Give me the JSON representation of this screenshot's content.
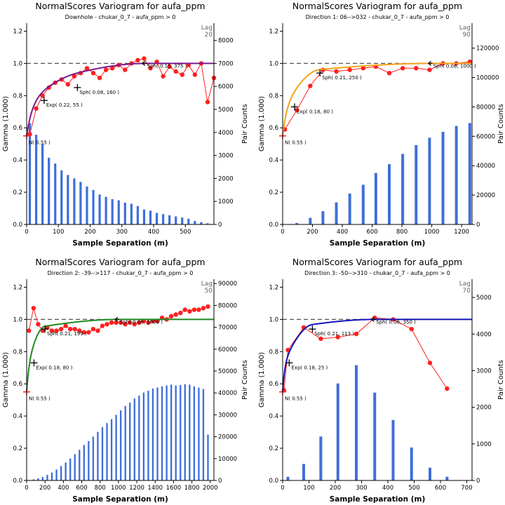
{
  "colors": {
    "bars": "#3f6fd8",
    "experimental": "#ff1f1f",
    "sill_line": "#555555",
    "nugget_marker": "#ff2020",
    "axis": "#000000"
  },
  "chart_data": [
    {
      "type": "line",
      "title": "NormalScores  Variogram for aufa_ppm",
      "subtitle": "Downhole - chukar_0_7 - aufa_ppm > 0",
      "xlabel": "Sample Separation (m)",
      "ylabel": "Gamma (1.000)",
      "y2label": "Pair Counts",
      "lag_label": "Lag",
      "lag_value": "20",
      "xlim": [
        0,
        590
      ],
      "ylim": [
        0,
        1.25
      ],
      "y2lim": [
        0,
        8750
      ],
      "xticks": [
        0,
        100,
        200,
        300,
        400,
        500
      ],
      "yticks": [
        0.0,
        0.2,
        0.4,
        0.6,
        0.8,
        1.0,
        1.2
      ],
      "y2ticks": [
        0,
        1000,
        2000,
        3000,
        4000,
        5000,
        6000,
        7000,
        8000
      ],
      "sill": 1.0,
      "nugget": 0.55,
      "model_color": "#7b1a8c",
      "model": [
        {
          "type": "exp",
          "c": 0.22,
          "a": 55
        },
        {
          "type": "sph",
          "c": 0.08,
          "a": 160
        },
        {
          "type": "sph",
          "c": 0.15,
          "a": 375
        }
      ],
      "labels": [
        {
          "text": "N( 0.55 )",
          "x": 0,
          "y": 0.55,
          "marker": "nugget"
        },
        {
          "text": "Exp( 0.22, 55 )",
          "x": 55,
          "y": 0.77,
          "marker": "cross"
        },
        {
          "text": "Sph( 0.08, 160 )",
          "x": 160,
          "y": 0.85,
          "marker": "cross"
        },
        {
          "text": "Sph( 0.15, 375 )",
          "x": 375,
          "y": 1.0,
          "marker": "left"
        }
      ],
      "experimental": {
        "x": [
          10,
          30,
          50,
          70,
          90,
          110,
          130,
          150,
          170,
          190,
          210,
          230,
          250,
          270,
          290,
          310,
          330,
          350,
          370,
          390,
          410,
          430,
          450,
          470,
          490,
          510,
          530,
          550,
          570,
          590
        ],
        "y": [
          0.56,
          0.72,
          0.8,
          0.85,
          0.88,
          0.9,
          0.87,
          0.92,
          0.94,
          0.97,
          0.94,
          0.91,
          0.96,
          0.97,
          0.99,
          0.96,
          1.0,
          1.02,
          1.03,
          0.97,
          1.01,
          0.92,
          0.98,
          0.95,
          0.93,
          0.99,
          0.93,
          1.0,
          0.76,
          0.91
        ]
      },
      "pairs": {
        "x": [
          10,
          30,
          50,
          70,
          90,
          110,
          130,
          150,
          170,
          190,
          210,
          230,
          250,
          270,
          290,
          310,
          330,
          350,
          370,
          390,
          410,
          430,
          450,
          470,
          490,
          510,
          530,
          550,
          570
        ],
        "counts": [
          4400,
          3900,
          3500,
          2900,
          2650,
          2350,
          2150,
          2000,
          1850,
          1650,
          1500,
          1300,
          1200,
          1100,
          1050,
          950,
          900,
          800,
          650,
          600,
          500,
          450,
          400,
          350,
          300,
          250,
          150,
          100,
          50
        ]
      }
    },
    {
      "type": "line",
      "title": "NormalScores  Variogram for aufa_ppm",
      "subtitle": "Direction 1: 06-->032 - chukar_0_7 - aufa_ppm > 0",
      "xlabel": "Sample Separation (m)",
      "ylabel": "Gamma (1.000)",
      "y2label": "Pair Counts",
      "lag_label": "Lag",
      "lag_value": "90",
      "xlim": [
        0,
        1270
      ],
      "ylim": [
        0,
        1.25
      ],
      "y2lim": [
        0,
        137000
      ],
      "xticks": [
        0,
        200,
        400,
        600,
        800,
        1000,
        1200
      ],
      "yticks": [
        0.0,
        0.2,
        0.4,
        0.6,
        0.8,
        1.0,
        1.2
      ],
      "y2ticks": [
        0,
        20000,
        40000,
        60000,
        80000,
        100000,
        120000
      ],
      "sill": 1.0,
      "nugget": 0.55,
      "model_color": "#f5a31a",
      "model": [
        {
          "type": "exp",
          "c": 0.18,
          "a": 80
        },
        {
          "type": "sph",
          "c": 0.21,
          "a": 250
        },
        {
          "type": "sph",
          "c": 0.06,
          "a": 1000
        }
      ],
      "labels": [
        {
          "text": "N( 0.55 )",
          "x": 0,
          "y": 0.55,
          "marker": "nugget"
        },
        {
          "text": "Exp( 0.18, 80 )",
          "x": 80,
          "y": 0.73,
          "marker": "cross"
        },
        {
          "text": "Sph( 0.21, 250 )",
          "x": 250,
          "y": 0.94,
          "marker": "cross"
        },
        {
          "text": "Sph( 0.06, 1000 )",
          "x": 1000,
          "y": 1.0,
          "marker": "left"
        }
      ],
      "experimental": {
        "x": [
          15,
          95,
          185,
          270,
          360,
          450,
          540,
          625,
          715,
          805,
          895,
          985,
          1075,
          1165,
          1255
        ],
        "y": [
          0.59,
          0.71,
          0.86,
          0.96,
          0.95,
          0.96,
          0.97,
          0.98,
          0.94,
          0.97,
          0.97,
          0.96,
          1.0,
          1.0,
          1.01
        ]
      },
      "pairs": {
        "x": [
          95,
          185,
          270,
          360,
          450,
          540,
          625,
          715,
          805,
          895,
          985,
          1075,
          1165,
          1255
        ],
        "counts": [
          1000,
          4500,
          9000,
          15000,
          21000,
          27000,
          35000,
          41000,
          48000,
          54000,
          59000,
          63000,
          67000,
          69000
        ]
      }
    },
    {
      "type": "line",
      "title": "NormalScores  Variogram for aufa_ppm",
      "subtitle": "Direction 2: -39-->117 - chukar_0_7 - aufa_ppm > 0",
      "xlabel": "Sample Separation (m)",
      "ylabel": "Gamma (1.000)",
      "y2label": "Pair Counts",
      "lag_label": "Lag",
      "lag_value": "50",
      "xlim": [
        0,
        2040
      ],
      "ylim": [
        0,
        1.25
      ],
      "y2lim": [
        0,
        92000
      ],
      "xticks": [
        0,
        200,
        400,
        600,
        800,
        1000,
        1200,
        1400,
        1600,
        1800,
        2000
      ],
      "yticks": [
        0.0,
        0.2,
        0.4,
        0.6,
        0.8,
        1.0,
        1.2
      ],
      "y2ticks": [
        0,
        10000,
        20000,
        30000,
        40000,
        50000,
        60000,
        70000,
        80000,
        90000
      ],
      "sill": 1.0,
      "nugget": 0.55,
      "model_color": "#1f8a1f",
      "model": [
        {
          "type": "exp",
          "c": 0.18,
          "a": 80
        },
        {
          "type": "sph",
          "c": 0.21,
          "a": 199
        },
        {
          "type": "sph",
          "c": 0.06,
          "a": 1000
        }
      ],
      "labels": [
        {
          "text": "N( 0.55 )",
          "x": 0,
          "y": 0.55,
          "marker": "nugget"
        },
        {
          "text": "Exp( 0.18, 80 )",
          "x": 80,
          "y": 0.73,
          "marker": "cross"
        },
        {
          "text": "Sph( 0.21, 199 )",
          "x": 199,
          "y": 0.94,
          "marker": "cross"
        },
        {
          "text": "Sph( 0.06, 1000 )",
          "x": 1000,
          "y": 1.0,
          "marker": "left"
        }
      ],
      "experimental": {
        "x": [
          25,
          75,
          125,
          175,
          225,
          275,
          325,
          375,
          425,
          475,
          525,
          575,
          625,
          675,
          725,
          775,
          825,
          875,
          925,
          975,
          1025,
          1075,
          1125,
          1175,
          1225,
          1275,
          1325,
          1375,
          1425,
          1475,
          1525,
          1575,
          1625,
          1675,
          1725,
          1775,
          1825,
          1875,
          1925,
          1975
        ],
        "y": [
          0.93,
          1.07,
          0.97,
          0.93,
          0.95,
          0.93,
          0.93,
          0.94,
          0.96,
          0.94,
          0.94,
          0.93,
          0.92,
          0.92,
          0.94,
          0.93,
          0.96,
          0.97,
          0.98,
          0.98,
          0.98,
          0.97,
          0.98,
          0.97,
          0.98,
          0.99,
          0.98,
          0.99,
          0.99,
          1.01,
          1.0,
          1.02,
          1.03,
          1.04,
          1.06,
          1.05,
          1.06,
          1.06,
          1.07,
          1.08
        ]
      },
      "pairs": {
        "x": [
          25,
          75,
          125,
          175,
          225,
          275,
          325,
          375,
          425,
          475,
          525,
          575,
          625,
          675,
          725,
          775,
          825,
          875,
          925,
          975,
          1025,
          1075,
          1125,
          1175,
          1225,
          1275,
          1325,
          1375,
          1425,
          1475,
          1525,
          1575,
          1625,
          1675,
          1725,
          1775,
          1825,
          1875,
          1925,
          1975
        ],
        "counts": [
          200,
          500,
          1000,
          1600,
          2600,
          3600,
          5000,
          6600,
          8200,
          10000,
          12000,
          14000,
          16200,
          18000,
          20000,
          22200,
          24300,
          26200,
          28000,
          30000,
          32000,
          34000,
          35600,
          37400,
          38800,
          40200,
          41000,
          42000,
          42500,
          43000,
          43400,
          43800,
          43400,
          43600,
          44000,
          43800,
          43000,
          42400,
          41800,
          21000
        ]
      }
    },
    {
      "type": "line",
      "title": "NormalScores  Variogram for aufa_ppm",
      "subtitle": "Direction 3: -50-->310 - chukar_0_7 - aufa_ppm > 0",
      "xlabel": "Sample Separation (m)",
      "ylabel": "Gamma (1.000)",
      "y2label": "Pair Counts",
      "lag_label": "Lag",
      "lag_value": "70",
      "xlim": [
        0,
        720
      ],
      "ylim": [
        0,
        1.25
      ],
      "y2lim": [
        0,
        5500
      ],
      "xticks": [
        0,
        100,
        200,
        300,
        400,
        500,
        600,
        700
      ],
      "yticks": [
        0.0,
        0.2,
        0.4,
        0.6,
        0.8,
        1.0,
        1.2
      ],
      "y2ticks": [
        0,
        1000,
        2000,
        3000,
        4000,
        5000
      ],
      "sill": 1.0,
      "nugget": 0.55,
      "model_color": "#1414b8",
      "model": [
        {
          "type": "exp",
          "c": 0.18,
          "a": 25
        },
        {
          "type": "sph",
          "c": 0.21,
          "a": 113
        },
        {
          "type": "sph",
          "c": 0.06,
          "a": 350
        }
      ],
      "labels": [
        {
          "text": "N( 0.55 )",
          "x": 0,
          "y": 0.55,
          "marker": "nugget"
        },
        {
          "text": "Exp( 0.18, 25 )",
          "x": 25,
          "y": 0.73,
          "marker": "cross"
        },
        {
          "text": "Sph( 0.21, 113 )",
          "x": 113,
          "y": 0.94,
          "marker": "cross"
        },
        {
          "text": "Sph( 0.06, 350 )",
          "x": 350,
          "y": 1.0,
          "marker": "left"
        }
      ],
      "experimental": {
        "x": [
          5,
          20,
          80,
          145,
          210,
          280,
          350,
          420,
          490,
          560,
          625
        ],
        "y": [
          0.56,
          0.81,
          0.95,
          0.88,
          0.89,
          0.91,
          1.01,
          1.0,
          0.94,
          0.73,
          0.57
        ]
      },
      "pairs": {
        "x": [
          20,
          80,
          145,
          210,
          280,
          350,
          420,
          490,
          560,
          625
        ],
        "counts": [
          100,
          450,
          1200,
          2650,
          3150,
          2400,
          1650,
          900,
          350,
          100
        ]
      }
    }
  ]
}
